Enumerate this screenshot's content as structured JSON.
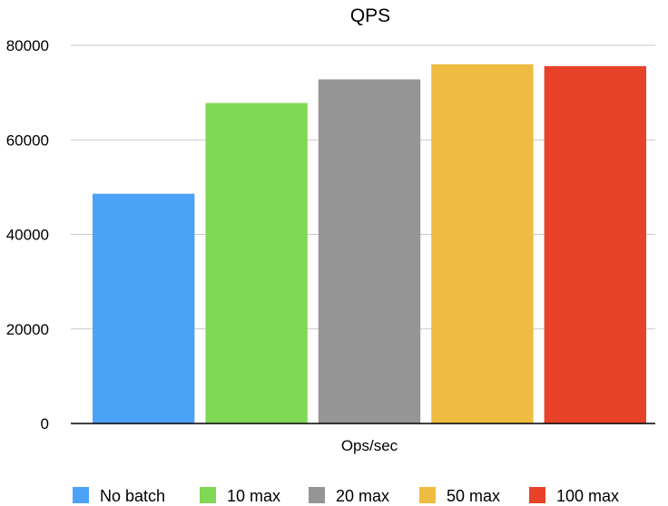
{
  "chart_data": {
    "type": "bar",
    "title": "QPS",
    "xlabel": "Ops/sec",
    "ylabel": "",
    "categories": [
      "Ops/sec"
    ],
    "series": [
      {
        "name": "No batch",
        "values": [
          48600
        ],
        "color": "#4aa3f7"
      },
      {
        "name": "10 max",
        "values": [
          67800
        ],
        "color": "#80d854"
      },
      {
        "name": "20 max",
        "values": [
          72800
        ],
        "color": "#959595"
      },
      {
        "name": "50 max",
        "values": [
          76000
        ],
        "color": "#eebc41"
      },
      {
        "name": "100 max",
        "values": [
          75600
        ],
        "color": "#e84328"
      }
    ],
    "ylim": [
      0,
      80000
    ],
    "yticks": [
      "0",
      "20000",
      "40000",
      "60000",
      "80000"
    ],
    "grid": true,
    "legend_position": "bottom"
  }
}
